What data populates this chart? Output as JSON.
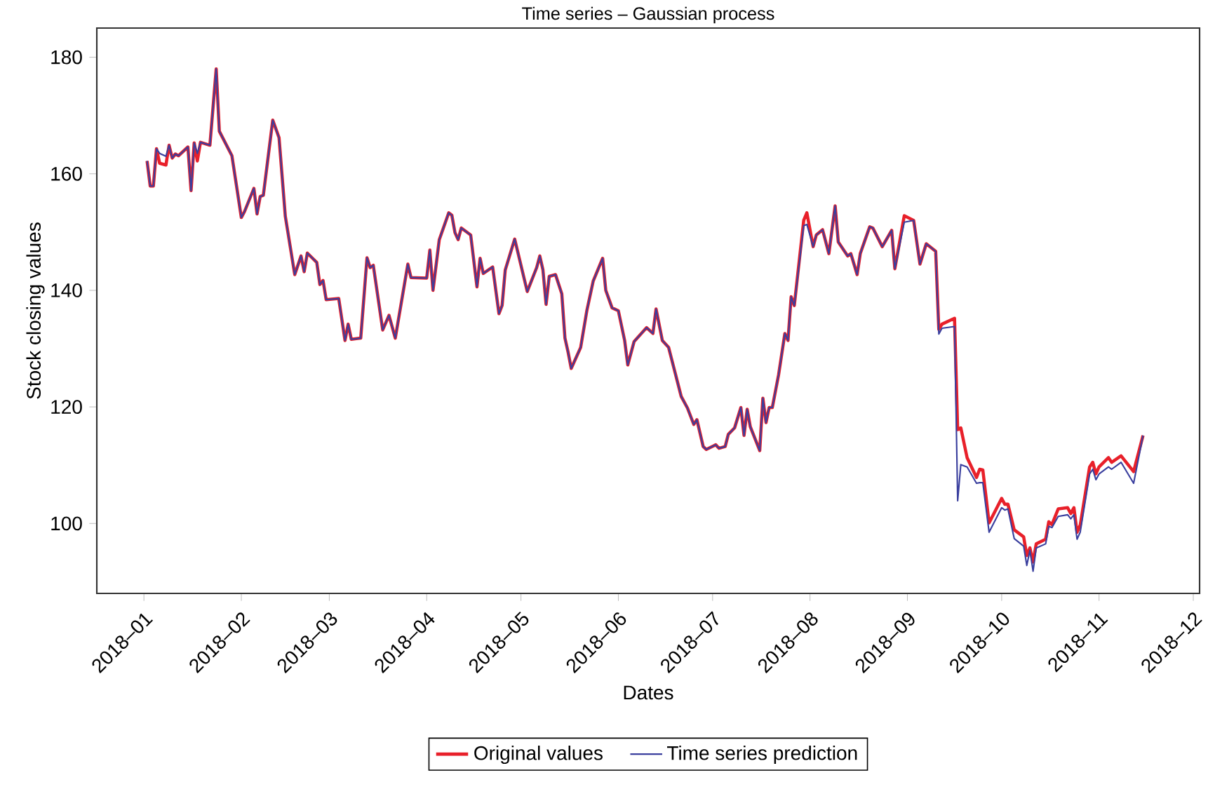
{
  "chart_data": {
    "type": "line",
    "title": "Time series – Gaussian process",
    "xlabel": "Dates",
    "ylabel": "Stock closing values",
    "x": [
      "2018-01-02",
      "2018-01-03",
      "2018-01-04",
      "2018-01-05",
      "2018-01-06",
      "2018-01-08",
      "2018-01-09",
      "2018-01-10",
      "2018-01-11",
      "2018-01-12",
      "2018-01-15",
      "2018-01-16",
      "2018-01-17",
      "2018-01-18",
      "2018-01-19",
      "2018-01-22",
      "2018-01-24",
      "2018-01-25",
      "2018-01-29",
      "2018-02-01",
      "2018-02-02",
      "2018-02-05",
      "2018-02-06",
      "2018-02-07",
      "2018-02-08",
      "2018-02-11",
      "2018-02-13",
      "2018-02-15",
      "2018-02-18",
      "2018-02-20",
      "2018-02-21",
      "2018-02-22",
      "2018-02-25",
      "2018-02-26",
      "2018-02-27",
      "2018-02-28",
      "2018-03-04",
      "2018-03-06",
      "2018-03-07",
      "2018-03-08",
      "2018-03-11",
      "2018-03-13",
      "2018-03-14",
      "2018-03-15",
      "2018-03-18",
      "2018-03-20",
      "2018-03-22",
      "2018-03-26",
      "2018-03-27",
      "2018-04-01",
      "2018-04-02",
      "2018-04-03",
      "2018-04-05",
      "2018-04-08",
      "2018-04-09",
      "2018-04-10",
      "2018-04-11",
      "2018-04-12",
      "2018-04-15",
      "2018-04-17",
      "2018-04-18",
      "2018-04-19",
      "2018-04-22",
      "2018-04-24",
      "2018-04-25",
      "2018-04-26",
      "2018-04-29",
      "2018-05-03",
      "2018-05-06",
      "2018-05-07",
      "2018-05-08",
      "2018-05-09",
      "2018-05-10",
      "2018-05-12",
      "2018-05-14",
      "2018-05-15",
      "2018-05-16",
      "2018-05-17",
      "2018-05-20",
      "2018-05-22",
      "2018-05-24",
      "2018-05-27",
      "2018-05-28",
      "2018-05-30",
      "2018-06-01",
      "2018-06-03",
      "2018-06-04",
      "2018-06-06",
      "2018-06-10",
      "2018-06-12",
      "2018-06-13",
      "2018-06-15",
      "2018-06-17",
      "2018-06-21",
      "2018-06-23",
      "2018-06-25",
      "2018-06-26",
      "2018-06-28",
      "2018-06-29",
      "2018-07-02",
      "2018-07-03",
      "2018-07-05",
      "2018-07-06",
      "2018-07-08",
      "2018-07-10",
      "2018-07-11",
      "2018-07-12",
      "2018-07-13",
      "2018-07-16",
      "2018-07-17",
      "2018-07-18",
      "2018-07-19",
      "2018-07-20",
      "2018-07-22",
      "2018-07-24",
      "2018-07-25",
      "2018-07-26",
      "2018-07-27",
      "2018-07-30",
      "2018-07-31",
      "2018-08-02",
      "2018-08-03",
      "2018-08-05",
      "2018-08-07",
      "2018-08-09",
      "2018-08-10",
      "2018-08-13",
      "2018-08-14",
      "2018-08-16",
      "2018-08-17",
      "2018-08-20",
      "2018-08-21",
      "2018-08-24",
      "2018-08-27",
      "2018-08-28",
      "2018-08-31",
      "2018-09-03",
      "2018-09-05",
      "2018-09-07",
      "2018-09-10",
      "2018-09-11",
      "2018-09-12",
      "2018-09-16",
      "2018-09-17",
      "2018-09-18",
      "2018-09-20",
      "2018-09-23",
      "2018-09-24",
      "2018-09-25",
      "2018-09-27",
      "2018-10-01",
      "2018-10-02",
      "2018-10-03",
      "2018-10-05",
      "2018-10-08",
      "2018-10-09",
      "2018-10-10",
      "2018-10-11",
      "2018-10-12",
      "2018-10-15",
      "2018-10-16",
      "2018-10-17",
      "2018-10-19",
      "2018-10-22",
      "2018-10-23",
      "2018-10-24",
      "2018-10-25",
      "2018-10-26",
      "2018-10-29",
      "2018-10-30",
      "2018-10-31",
      "2018-11-01",
      "2018-11-04",
      "2018-11-05",
      "2018-11-08",
      "2018-11-12",
      "2018-11-15"
    ],
    "series": [
      {
        "name": "Original values",
        "color": "#e8202a",
        "values": [
          162.2,
          157.9,
          157.9,
          164.3,
          161.8,
          161.5,
          164.9,
          162.7,
          163.4,
          163.1,
          164.6,
          157.1,
          165.3,
          162.2,
          165.4,
          164.9,
          178.0,
          167.3,
          163.1,
          152.5,
          153.5,
          157.5,
          153.1,
          156.1,
          156.3,
          169.2,
          166.2,
          152.7,
          142.7,
          145.9,
          143.2,
          146.4,
          144.8,
          141.0,
          141.7,
          138.4,
          138.6,
          131.4,
          134.2,
          131.6,
          131.8,
          145.6,
          143.9,
          144.3,
          133.2,
          135.7,
          131.8,
          144.5,
          142.2,
          142.1,
          146.9,
          140.0,
          148.7,
          153.3,
          152.9,
          149.9,
          148.7,
          150.7,
          149.5,
          140.6,
          145.5,
          142.9,
          144.0,
          136.0,
          137.4,
          143.5,
          148.8,
          139.8,
          143.9,
          145.9,
          143.5,
          137.6,
          142.4,
          142.7,
          139.4,
          131.8,
          129.4,
          126.6,
          130.2,
          136.6,
          141.6,
          145.5,
          140.0,
          137.0,
          136.5,
          131.4,
          127.2,
          131.2,
          133.6,
          132.6,
          136.8,
          131.4,
          130.2,
          121.8,
          119.8,
          117.0,
          117.8,
          113.2,
          112.7,
          113.5,
          112.9,
          113.2,
          115.3,
          116.4,
          119.9,
          115.1,
          119.6,
          116.6,
          112.5,
          121.5,
          117.3,
          119.9,
          119.9,
          125.5,
          132.6,
          131.4,
          138.9,
          137.4,
          152.0,
          153.3,
          147.5,
          149.5,
          150.4,
          146.3,
          154.5,
          148.3,
          145.9,
          146.3,
          142.7,
          146.3,
          150.9,
          150.7,
          147.5,
          150.3,
          143.7,
          152.8,
          152.0,
          144.5,
          148.0,
          146.7,
          133.3,
          134.2,
          135.2,
          116.1,
          116.4,
          111.3,
          107.9,
          109.3,
          109.2,
          100.1,
          104.3,
          103.3,
          103.3,
          98.9,
          97.7,
          94.5,
          95.8,
          93.4,
          96.5,
          97.3,
          100.3,
          99.8,
          102.5,
          102.7,
          101.7,
          102.7,
          98.5,
          99.7,
          109.7,
          110.5,
          108.5,
          109.7,
          111.3,
          110.5,
          111.6,
          108.9,
          115.1
        ]
      },
      {
        "name": "Time series prediction",
        "color": "#3a3f9e",
        "values": [
          162.2,
          157.9,
          157.9,
          164.3,
          163.5,
          163.0,
          164.9,
          162.7,
          163.4,
          163.1,
          164.6,
          157.1,
          165.3,
          163.5,
          165.4,
          164.9,
          178.0,
          167.3,
          163.1,
          152.5,
          153.5,
          157.5,
          153.1,
          156.1,
          156.3,
          169.2,
          166.2,
          152.7,
          142.7,
          145.9,
          143.2,
          146.4,
          144.8,
          141.0,
          141.7,
          138.4,
          138.6,
          131.4,
          134.2,
          131.6,
          131.8,
          145.6,
          143.9,
          144.3,
          133.2,
          135.7,
          131.8,
          144.5,
          142.2,
          142.1,
          146.9,
          140.0,
          148.7,
          153.3,
          152.9,
          149.9,
          148.7,
          150.7,
          149.5,
          140.6,
          145.5,
          142.9,
          144.0,
          136.0,
          137.4,
          143.5,
          148.8,
          139.8,
          143.9,
          145.9,
          143.5,
          137.6,
          142.4,
          142.7,
          139.4,
          131.8,
          129.4,
          126.6,
          130.2,
          136.6,
          141.6,
          145.5,
          140.0,
          137.0,
          136.5,
          131.4,
          127.2,
          131.2,
          133.6,
          132.6,
          136.8,
          131.4,
          130.2,
          121.8,
          119.8,
          117.0,
          117.8,
          113.2,
          112.7,
          113.5,
          112.9,
          113.2,
          115.3,
          116.4,
          119.9,
          115.1,
          119.6,
          116.6,
          112.5,
          121.5,
          117.3,
          119.9,
          119.9,
          125.5,
          132.6,
          131.4,
          138.9,
          137.4,
          151.1,
          151.3,
          147.5,
          149.5,
          150.4,
          146.3,
          154.5,
          148.3,
          145.9,
          146.3,
          142.7,
          146.3,
          150.9,
          150.7,
          147.5,
          150.3,
          143.7,
          151.7,
          152.0,
          144.5,
          148.0,
          146.7,
          132.5,
          133.5,
          133.8,
          103.9,
          110.1,
          109.7,
          106.9,
          107.0,
          107.0,
          98.5,
          102.7,
          102.3,
          102.5,
          97.4,
          96.1,
          92.8,
          95.4,
          91.8,
          95.8,
          96.5,
          99.5,
          99.3,
          101.2,
          101.5,
          100.8,
          101.5,
          97.3,
          98.5,
          108.5,
          109.3,
          107.5,
          108.5,
          109.7,
          109.3,
          110.5,
          106.9,
          115.1
        ]
      }
    ],
    "xlim": [
      "2017-12-17",
      "2018-12-03"
    ],
    "ylim": [
      88,
      185
    ],
    "xticks": [
      {
        "value": "2018-01",
        "label": "2018–01"
      },
      {
        "value": "2018-02",
        "label": "2018–02"
      },
      {
        "value": "2018-03",
        "label": "2018–03"
      },
      {
        "value": "2018-04",
        "label": "2018–04"
      },
      {
        "value": "2018-05",
        "label": "2018–05"
      },
      {
        "value": "2018-06",
        "label": "2018–06"
      },
      {
        "value": "2018-07",
        "label": "2018–07"
      },
      {
        "value": "2018-08",
        "label": "2018–08"
      },
      {
        "value": "2018-09",
        "label": "2018–09"
      },
      {
        "value": "2018-10",
        "label": "2018–10"
      },
      {
        "value": "2018-11",
        "label": "2018–11"
      },
      {
        "value": "2018-12",
        "label": "2018–12"
      }
    ],
    "yticks": [
      100,
      120,
      140,
      160,
      180
    ],
    "grid": false,
    "legend": "bottom",
    "marker": "none",
    "line_style": "solid"
  }
}
